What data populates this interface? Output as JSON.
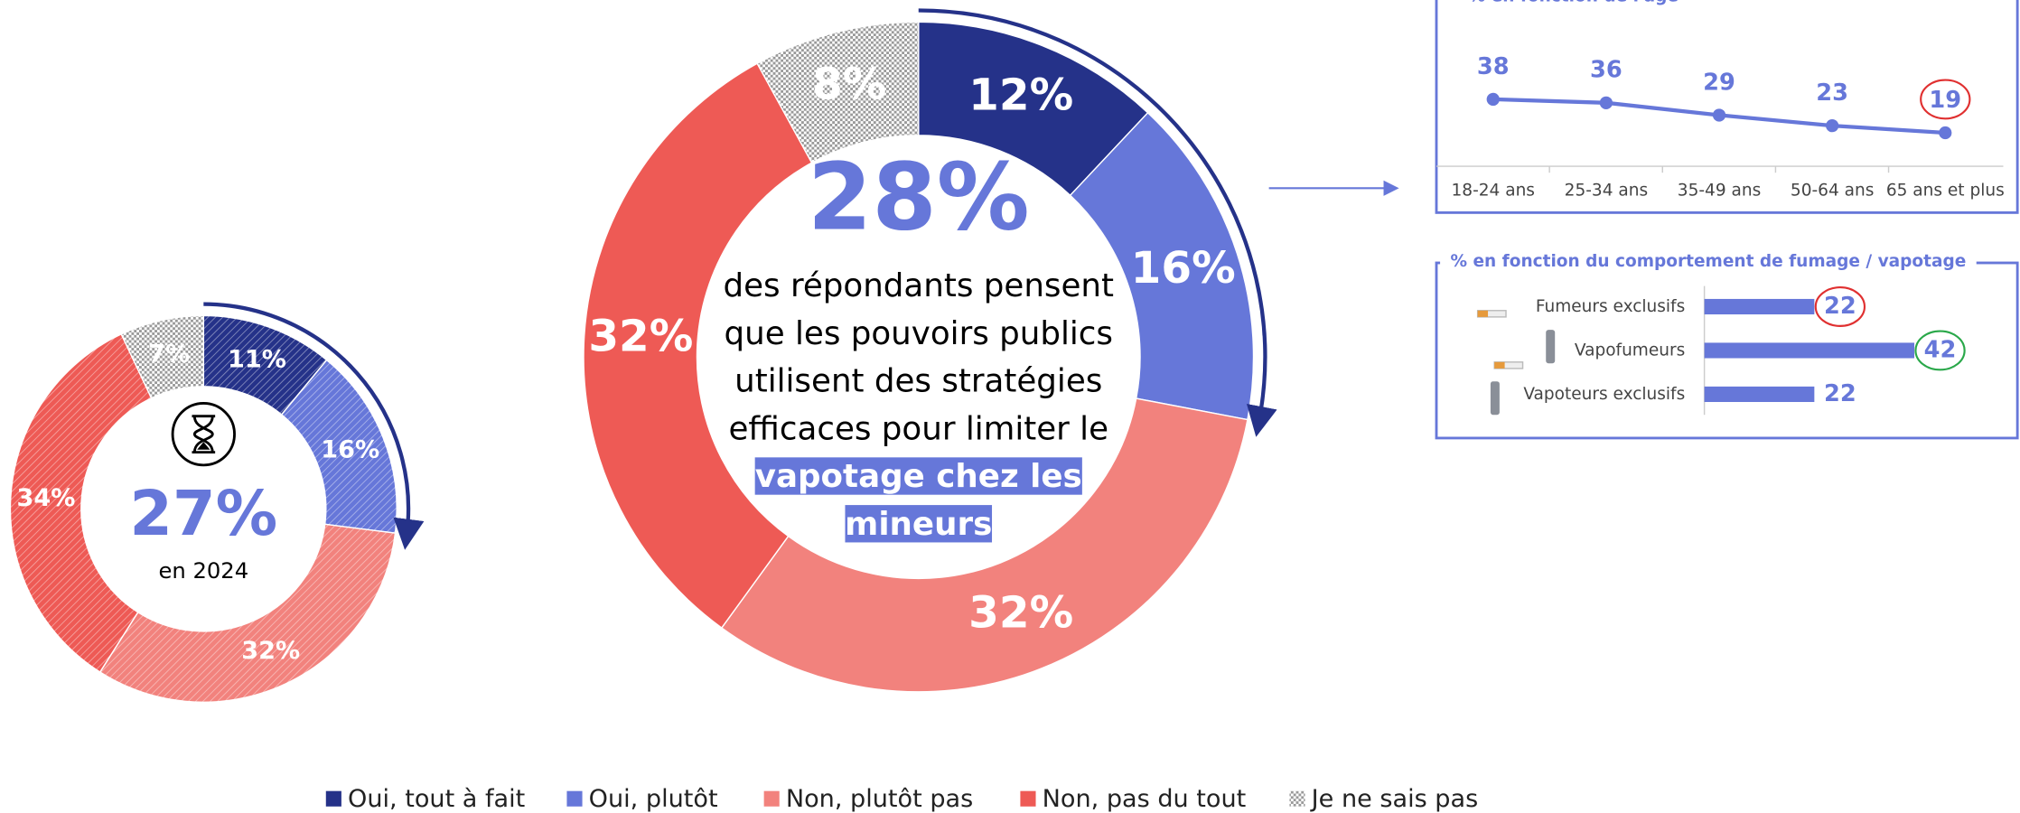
{
  "chart_data": [
    {
      "type": "pie",
      "center_label": "27%",
      "subtitle": "en 2024",
      "values": [
        11,
        16,
        32,
        34,
        7
      ],
      "value_labels": [
        "11%",
        "16%",
        "32%",
        "34%",
        "7%"
      ],
      "colors": [
        "#253289",
        "#6677d9",
        "#f2827d",
        "#ee5a55",
        "#bbbbbb"
      ]
    },
    {
      "type": "pie",
      "center_label": "28%",
      "subtitle": "des répondants pensent que les pouvoirs publics utilisent des stratégies efficaces pour limiter le",
      "highlight": "vapotage chez les mineurs",
      "values": [
        12,
        16,
        32,
        32,
        8
      ],
      "value_labels": [
        "12%",
        "16%",
        "32%",
        "32%",
        "8%"
      ],
      "colors": [
        "#253289",
        "#6677d9",
        "#f2827d",
        "#ee5a55",
        "#bbbbbb"
      ]
    },
    {
      "type": "line",
      "title": "% en fonction de l'âge",
      "categories": [
        "18-24 ans",
        "25-34 ans",
        "35-49 ans",
        "50-64 ans",
        "65 ans et plus"
      ],
      "values": [
        38,
        36,
        29,
        23,
        19
      ],
      "color": "#6677d9",
      "circle_colors": [
        null,
        null,
        null,
        null,
        "#e03030"
      ]
    },
    {
      "type": "hbar",
      "title": "% en fonction du comportement de fumage / vapotage",
      "categories": [
        "Fumeurs exclusifs",
        "Vapofumeurs",
        "Vapoteurs exclusifs"
      ],
      "values": [
        22,
        42,
        22
      ],
      "color": "#6677d9",
      "circle_colors": [
        "#e03030",
        "#2aa84a",
        null
      ]
    }
  ],
  "legend": {
    "labels": [
      "Oui, tout à fait",
      "Oui, plutôt",
      "Non, plutôt pas",
      "Non, pas du tout",
      "Je ne sais pas"
    ],
    "colors": [
      "#253289",
      "#6677d9",
      "#f2827d",
      "#ee5a55",
      "#bbbbbb"
    ]
  }
}
